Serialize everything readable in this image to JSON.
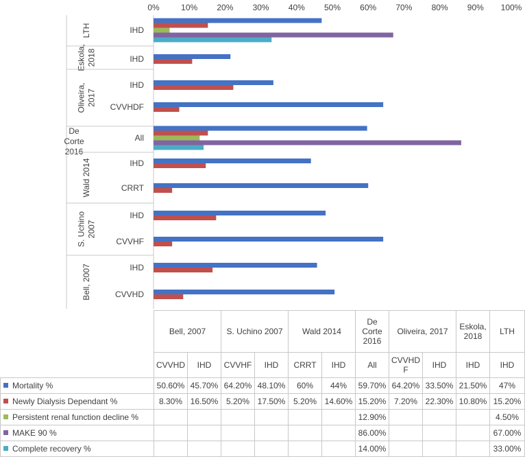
{
  "chart_data": {
    "type": "bar",
    "orientation": "horizontal",
    "x_ticks": [
      "0%",
      "10%",
      "20%",
      "30%",
      "40%",
      "50%",
      "60%",
      "70%",
      "80%",
      "90%",
      "100%"
    ],
    "xlim": [
      0,
      100
    ],
    "groups": [
      {
        "study": "LTH",
        "modalities": [
          "IHD"
        ]
      },
      {
        "study": "Eskola, 2018",
        "modalities": [
          "IHD"
        ]
      },
      {
        "study": "Oliveira, 2017",
        "modalities": [
          "IHD",
          "CVVHDF"
        ]
      },
      {
        "study": "De Corte 2016",
        "modalities": [
          "All"
        ]
      },
      {
        "study": "Wald 2014",
        "modalities": [
          "IHD",
          "CRRT"
        ]
      },
      {
        "study": "S. Uchino 2007",
        "modalities": [
          "IHD",
          "CVVHF"
        ]
      },
      {
        "study": "Bell, 2007",
        "modalities": [
          "IHD",
          "CVVHD"
        ]
      }
    ],
    "series": [
      {
        "name": "Mortality %",
        "color": "#4472C4",
        "values": {
          "LTH|IHD": 47,
          "Eskola, 2018|IHD": 21.5,
          "Oliveira, 2017|IHD": 33.5,
          "Oliveira, 2017|CVVHDF": 64.2,
          "De Corte 2016|All": 59.7,
          "Wald 2014|IHD": 44,
          "Wald 2014|CRRT": 60,
          "S. Uchino 2007|IHD": 48.1,
          "S. Uchino 2007|CVVHF": 64.2,
          "Bell, 2007|IHD": 45.7,
          "Bell, 2007|CVVHD": 50.6
        }
      },
      {
        "name": "Newly Dialysis Dependant %",
        "color": "#C0504D",
        "values": {
          "LTH|IHD": 15.2,
          "Eskola, 2018|IHD": 10.8,
          "Oliveira, 2017|IHD": 22.3,
          "Oliveira, 2017|CVVHDF": 7.2,
          "De Corte 2016|All": 15.2,
          "Wald 2014|IHD": 14.6,
          "Wald 2014|CRRT": 5.2,
          "S. Uchino 2007|IHD": 17.5,
          "S. Uchino 2007|CVVHF": 5.2,
          "Bell, 2007|IHD": 16.5,
          "Bell, 2007|CVVHD": 8.3
        }
      },
      {
        "name": "Persistent renal function decline %",
        "color": "#9BBB59",
        "values": {
          "LTH|IHD": 4.5,
          "De Corte 2016|All": 12.9
        }
      },
      {
        "name": "MAKE 90 %",
        "color": "#8064A2",
        "values": {
          "LTH|IHD": 67,
          "De Corte 2016|All": 86
        }
      },
      {
        "name": "Complete recovery %",
        "color": "#4BACC6",
        "values": {
          "LTH|IHD": 33,
          "De Corte 2016|All": 14
        }
      }
    ]
  },
  "table": {
    "studies": [
      {
        "name": "Bell, 2007",
        "span": 2
      },
      {
        "name": "S. Uchino 2007",
        "span": 2
      },
      {
        "name": "Wald 2014",
        "span": 2
      },
      {
        "name": "De Corte 2016",
        "span": 1
      },
      {
        "name": "Oliveira, 2017",
        "span": 2
      },
      {
        "name": "Eskola, 2018",
        "span": 1
      },
      {
        "name": "LTH",
        "span": 1
      }
    ],
    "modalities": [
      "CVVHD",
      "IHD",
      "CVVHF",
      "IHD",
      "CRRT",
      "IHD",
      "All",
      "CVVHDF",
      "IHD",
      "IHD",
      "IHD"
    ],
    "rows": [
      {
        "label": "Mortality %",
        "color": "#4472C4",
        "cells": [
          "50.60%",
          "45.70%",
          "64.20%",
          "48.10%",
          "60%",
          "44%",
          "59.70%",
          "64.20%",
          "33.50%",
          "21.50%",
          "47%"
        ]
      },
      {
        "label": "Newly Dialysis Dependant %",
        "color": "#C0504D",
        "cells": [
          "8.30%",
          "16.50%",
          "5.20%",
          "17.50%",
          "5.20%",
          "14.60%",
          "15.20%",
          "7.20%",
          "22.30%",
          "10.80%",
          "15.20%"
        ]
      },
      {
        "label": "Persistent renal function decline %",
        "color": "#9BBB59",
        "cells": [
          "",
          "",
          "",
          "",
          "",
          "",
          "12.90%",
          "",
          "",
          "",
          "4.50%"
        ]
      },
      {
        "label": "MAKE 90 %",
        "color": "#8064A2",
        "cells": [
          "",
          "",
          "",
          "",
          "",
          "",
          "86.00%",
          "",
          "",
          "",
          "67.00%"
        ]
      },
      {
        "label": "Complete recovery %",
        "color": "#4BACC6",
        "cells": [
          "",
          "",
          "",
          "",
          "",
          "",
          "14.00%",
          "",
          "",
          "",
          "33.00%"
        ]
      }
    ]
  }
}
